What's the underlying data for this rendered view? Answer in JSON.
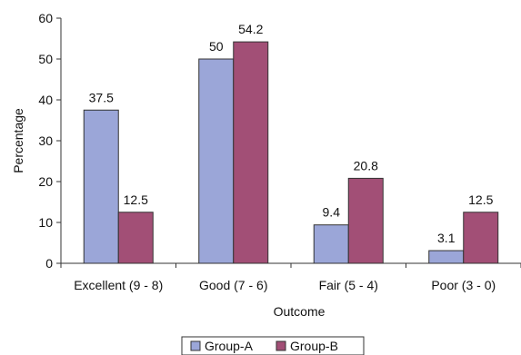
{
  "chart_data": {
    "type": "bar",
    "categories": [
      "Excellent (9 - 8)",
      "Good (7 - 6)",
      "Fair (5 - 4)",
      "Poor (3 - 0)"
    ],
    "series": [
      {
        "name": "Group-A",
        "values": [
          37.5,
          50,
          9.4,
          3.1
        ],
        "color": "#9ba6d8"
      },
      {
        "name": "Group-B",
        "values": [
          12.5,
          54.2,
          20.8,
          12.5
        ],
        "color": "#a24f76"
      }
    ],
    "data_labels": [
      [
        "37.5",
        "50",
        "9.4",
        "3.1"
      ],
      [
        "12.5",
        "54.2",
        "20.8",
        "12.5"
      ]
    ],
    "title": "",
    "xlabel": "Outcome",
    "ylabel": "Percentage",
    "ylim": [
      0,
      60
    ],
    "yticks": [
      "0",
      "10",
      "20",
      "30",
      "40",
      "50",
      "60"
    ],
    "grid": false,
    "legend_position": "bottom-center",
    "bar_edge_color": "#333333"
  }
}
